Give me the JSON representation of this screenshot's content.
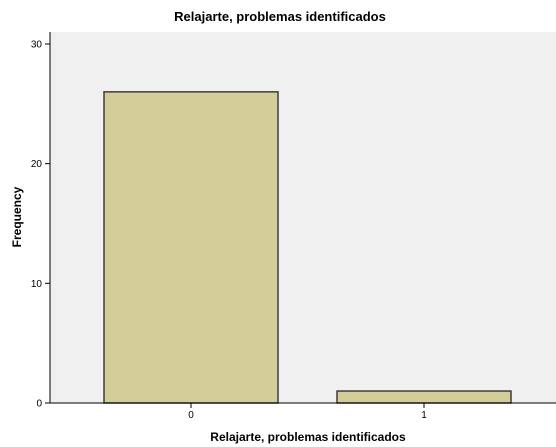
{
  "chart_data": {
    "type": "bar",
    "title": "Relajarte, problemas identificados",
    "xlabel": "Relajarte, problemas identificados",
    "ylabel": "Frequency",
    "categories": [
      "0",
      "1"
    ],
    "values": [
      26,
      1
    ],
    "ylim": [
      0,
      31
    ],
    "yticks": [
      "0",
      "10",
      "20",
      "30"
    ],
    "grid": false,
    "legend": "none",
    "colors": {
      "plot_background": "#f0f0f0",
      "bar_fill": "#d3ce97",
      "bar_stroke": "#3c3c3c",
      "axis": "#000000"
    }
  }
}
